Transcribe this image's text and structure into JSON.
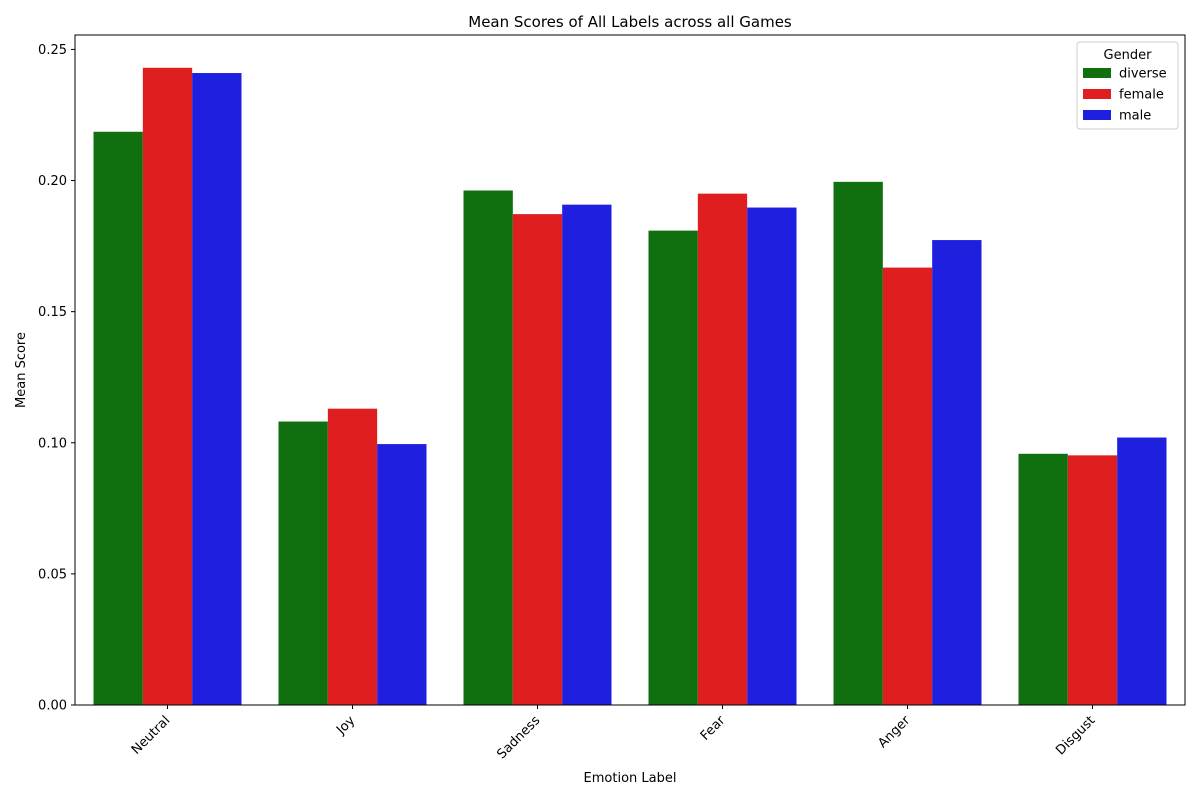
{
  "chart_data": {
    "type": "bar",
    "title": "Mean Scores of All Labels across all Games",
    "xlabel": "Emotion Label",
    "ylabel": "Mean Score",
    "categories": [
      "Neutral",
      "Joy",
      "Sadness",
      "Fear",
      "Anger",
      "Disgust"
    ],
    "series": [
      {
        "name": "diverse",
        "color": "#107010",
        "values": [
          0.2186,
          0.1081,
          0.1962,
          0.1809,
          0.1995,
          0.0958
        ]
      },
      {
        "name": "female",
        "color": "#df1f1f",
        "values": [
          0.243,
          0.113,
          0.1872,
          0.195,
          0.1668,
          0.0952
        ]
      },
      {
        "name": "male",
        "color": "#1f1fdf",
        "values": [
          0.241,
          0.0995,
          0.1908,
          0.1897,
          0.1773,
          0.102
        ]
      }
    ],
    "ylim": [
      0,
      0.2555
    ],
    "yticks": [
      0.0,
      0.05,
      0.1,
      0.15,
      0.2,
      0.25
    ],
    "ytick_labels": [
      "0.00",
      "0.05",
      "0.10",
      "0.15",
      "0.20",
      "0.25"
    ],
    "legend": {
      "title": "Gender",
      "position": "top-right"
    },
    "grid": false
  }
}
